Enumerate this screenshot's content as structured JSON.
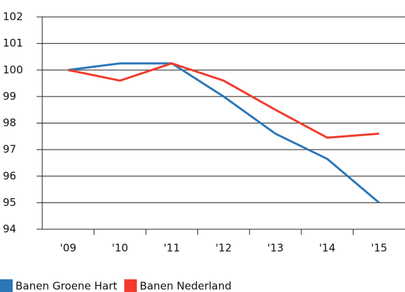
{
  "chart_data": {
    "type": "line",
    "categories": [
      "'09",
      "'10",
      "'11",
      "'12",
      "'13",
      "'14",
      "'15"
    ],
    "series": [
      {
        "name": "Banen Groene Hart",
        "color": "#2b77b8",
        "values": [
          100,
          100.25,
          100.25,
          99.0,
          97.6,
          96.65,
          95.0
        ]
      },
      {
        "name": "Banen Nederland",
        "color": "#f23b2c",
        "values": [
          100,
          99.6,
          100.25,
          99.6,
          98.5,
          97.45,
          97.6
        ]
      }
    ],
    "ylim": [
      94,
      102
    ],
    "yticks": [
      94,
      95,
      96,
      97,
      98,
      99,
      100,
      101,
      102
    ],
    "grid": true
  }
}
